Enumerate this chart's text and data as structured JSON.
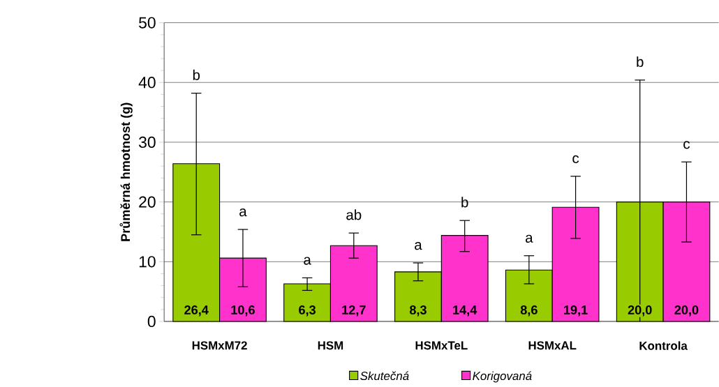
{
  "chart_data": {
    "type": "bar",
    "ylabel": "Průměrná hmotnost (g)",
    "categories": [
      "HSMxM72",
      "HSM",
      "HSMxTeL",
      "HSMxAL",
      "Kontrola"
    ],
    "series": [
      {
        "name": "Skutečná",
        "color": "#99cc00",
        "values": [
          26.4,
          6.3,
          8.3,
          8.6,
          20.0
        ],
        "value_labels": [
          "26,4",
          "6,3",
          "8,3",
          "8,6",
          "20,0"
        ],
        "errors": [
          [
            14.5,
            38.2
          ],
          [
            5.2,
            7.3
          ],
          [
            6.8,
            9.8
          ],
          [
            6.3,
            11.0
          ],
          [
            0,
            40.4
          ]
        ]
      },
      {
        "name": "Korigovaná",
        "color": "#ff33cc",
        "values": [
          10.6,
          12.7,
          14.4,
          19.1,
          20.0
        ],
        "value_labels": [
          "10,6",
          "12,7",
          "14,4",
          "19,1",
          "20,0"
        ],
        "errors": [
          [
            5.8,
            15.4
          ],
          [
            10.6,
            14.8
          ],
          [
            11.7,
            16.9
          ],
          [
            13.9,
            24.3
          ],
          [
            13.3,
            26.7
          ]
        ]
      }
    ],
    "annotations": [
      "b",
      "a",
      "a",
      "ab",
      "a",
      "b",
      "a",
      "c",
      "b",
      "c"
    ],
    "ylim": [
      0,
      50
    ],
    "yticks": [
      0,
      10,
      20,
      30,
      40,
      50
    ],
    "grid": "y",
    "legend": "bottom"
  }
}
